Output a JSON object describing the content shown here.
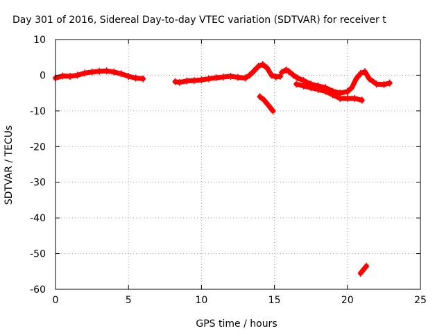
{
  "chart_data": {
    "type": "scatter",
    "title": "Day 301 of 2016, Sidereal Day-to-day VTEC variation (SDTVAR) for receiver t",
    "xlabel": "GPS time / hours",
    "ylabel": "SDTVAR / TECUs",
    "xlim": [
      0,
      25
    ],
    "ylim": [
      -60,
      10
    ],
    "xticks": [
      0,
      5,
      10,
      15,
      20,
      25
    ],
    "yticks": [
      10,
      0,
      -10,
      -20,
      -30,
      -40,
      -50,
      -60
    ],
    "grid": true,
    "series": [
      {
        "name": "SDTVAR",
        "color": "#ff0000",
        "segments": [
          {
            "x": [
              0,
              0.5,
              1,
              1.5,
              2,
              2.5,
              3,
              3.5,
              4,
              4.5,
              5,
              5.5,
              6
            ],
            "y": [
              -0.8,
              -0.2,
              -0.3,
              0.0,
              0.6,
              0.9,
              1.1,
              1.2,
              0.9,
              0.4,
              -0.3,
              -0.8,
              -1.0
            ]
          },
          {
            "x": [
              8.2,
              8.5,
              9,
              9.5,
              10,
              10.5,
              11,
              11.5,
              12,
              12.5,
              13,
              13.3,
              13.6,
              13.9,
              14.2,
              14.5,
              14.8,
              15.1,
              15.4
            ],
            "y": [
              -1.8,
              -2.0,
              -1.6,
              -1.5,
              -1.3,
              -1.0,
              -0.7,
              -0.5,
              -0.3,
              -0.6,
              -0.8,
              0.0,
              1.2,
              2.5,
              3.0,
              2.0,
              0.0,
              -0.5,
              -0.3
            ]
          },
          {
            "x": [
              15.5,
              15.8,
              16,
              16.3,
              16.6,
              17,
              17.5,
              18,
              18.5,
              19,
              19.5,
              20,
              20.3,
              20.6,
              20.9,
              21.2,
              21.5,
              22,
              22.5,
              22.9
            ],
            "y": [
              0.8,
              1.5,
              1.0,
              0.0,
              -0.8,
              -1.5,
              -2.5,
              -3.0,
              -3.5,
              -4.5,
              -5.0,
              -4.6,
              -3.5,
              -1.0,
              0.5,
              1.0,
              -1.0,
              -2.5,
              -2.6,
              -2.2
            ]
          },
          {
            "x": [
              16.5,
              17,
              17.5,
              18,
              18.5,
              19,
              19.5,
              20,
              20.5,
              21
            ],
            "y": [
              -2.5,
              -3.0,
              -3.5,
              -4.0,
              -4.5,
              -5.5,
              -6.5,
              -6.5,
              -6.5,
              -7.0
            ]
          },
          {
            "x": [
              14.0,
              14.3,
              14.6,
              14.9
            ],
            "y": [
              -6.0,
              -7.0,
              -8.5,
              -10.0
            ]
          },
          {
            "x": [
              20.9,
              21.1,
              21.3
            ],
            "y": [
              -55.5,
              -54.5,
              -53.5
            ]
          }
        ]
      }
    ]
  }
}
